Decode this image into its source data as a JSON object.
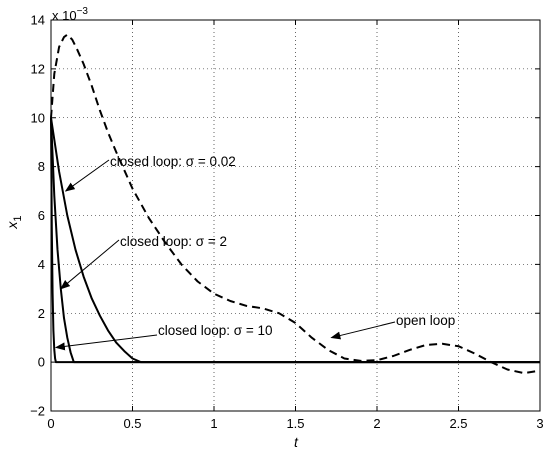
{
  "chart_data": {
    "type": "line",
    "xlabel": "t",
    "ylabel": "x",
    "ylabel_subscript": "1",
    "exponent_label": "x 10",
    "exponent_power": "−3",
    "xlim": [
      0,
      3
    ],
    "ylim": [
      -2,
      14
    ],
    "xticks": [
      {
        "value": 0,
        "label": "0"
      },
      {
        "value": 0.5,
        "label": "0.5"
      },
      {
        "value": 1,
        "label": "1"
      },
      {
        "value": 1.5,
        "label": "1.5"
      },
      {
        "value": 2,
        "label": "2"
      },
      {
        "value": 2.5,
        "label": "2.5"
      },
      {
        "value": 3,
        "label": "3"
      }
    ],
    "yticks": [
      {
        "value": -2,
        "label": "−2"
      },
      {
        "value": 0,
        "label": "0"
      },
      {
        "value": 2,
        "label": "2"
      },
      {
        "value": 4,
        "label": "4"
      },
      {
        "value": 6,
        "label": "6"
      },
      {
        "value": 8,
        "label": "8"
      },
      {
        "value": 10,
        "label": "10"
      },
      {
        "value": 12,
        "label": "12"
      },
      {
        "value": 14,
        "label": "14"
      }
    ],
    "grid": true,
    "colors": {
      "lines": "#000000",
      "grid": "#000000",
      "background": "#ffffff"
    },
    "series": [
      {
        "name": "open loop",
        "style": "dashed",
        "x": [
          0,
          0.02,
          0.05,
          0.08,
          0.1,
          0.13,
          0.16,
          0.2,
          0.25,
          0.3,
          0.35,
          0.4,
          0.5,
          0.6,
          0.7,
          0.8,
          0.9,
          1.0,
          1.1,
          1.2,
          1.3,
          1.4,
          1.5,
          1.6,
          1.7,
          1.8,
          1.9,
          2.0,
          2.1,
          2.2,
          2.3,
          2.4,
          2.5,
          2.6,
          2.7,
          2.8,
          2.9,
          3.0
        ],
        "y": [
          10.0,
          11.8,
          12.9,
          13.3,
          13.4,
          13.2,
          12.8,
          12.2,
          11.3,
          10.3,
          9.4,
          8.6,
          7.1,
          5.9,
          4.9,
          4.0,
          3.3,
          2.8,
          2.5,
          2.3,
          2.2,
          2.0,
          1.6,
          1.0,
          0.5,
          0.15,
          0.05,
          0.08,
          0.25,
          0.5,
          0.7,
          0.75,
          0.65,
          0.35,
          0.0,
          -0.3,
          -0.45,
          -0.35
        ]
      },
      {
        "name": "closed loop: σ = 0.02",
        "style": "solid",
        "x": [
          0,
          0.05,
          0.1,
          0.15,
          0.2,
          0.25,
          0.3,
          0.35,
          0.4,
          0.45,
          0.5,
          0.55,
          3.0
        ],
        "y": [
          10.0,
          7.8,
          6.0,
          4.6,
          3.5,
          2.6,
          1.9,
          1.3,
          0.8,
          0.45,
          0.15,
          0.0,
          0.0
        ]
      },
      {
        "name": "closed loop: σ = 2",
        "style": "solid",
        "x": [
          0,
          0.02,
          0.04,
          0.06,
          0.08,
          0.1,
          0.12,
          0.14,
          3.0
        ],
        "y": [
          10.0,
          6.8,
          4.6,
          3.0,
          1.8,
          1.0,
          0.4,
          0.0,
          0.0
        ]
      },
      {
        "name": "closed loop: σ = 10",
        "style": "solid",
        "x": [
          0,
          0.005,
          0.01,
          0.015,
          0.02,
          0.025,
          0.03,
          3.0
        ],
        "y": [
          10.0,
          5.5,
          2.8,
          1.3,
          0.5,
          0.15,
          0.0,
          0.0
        ]
      }
    ],
    "annotations": [
      {
        "text": "closed loop: σ = 0.02",
        "arrow_to": {
          "x": 0.09,
          "y": 7.0
        }
      },
      {
        "text": "closed loop: σ = 2",
        "arrow_to": {
          "x": 0.06,
          "y": 3.0
        }
      },
      {
        "text": "closed loop: σ = 10",
        "arrow_to": {
          "x": 0.03,
          "y": 0.6
        }
      },
      {
        "text": "open loop",
        "arrow_to": {
          "x": 1.72,
          "y": 1.0
        }
      }
    ]
  }
}
